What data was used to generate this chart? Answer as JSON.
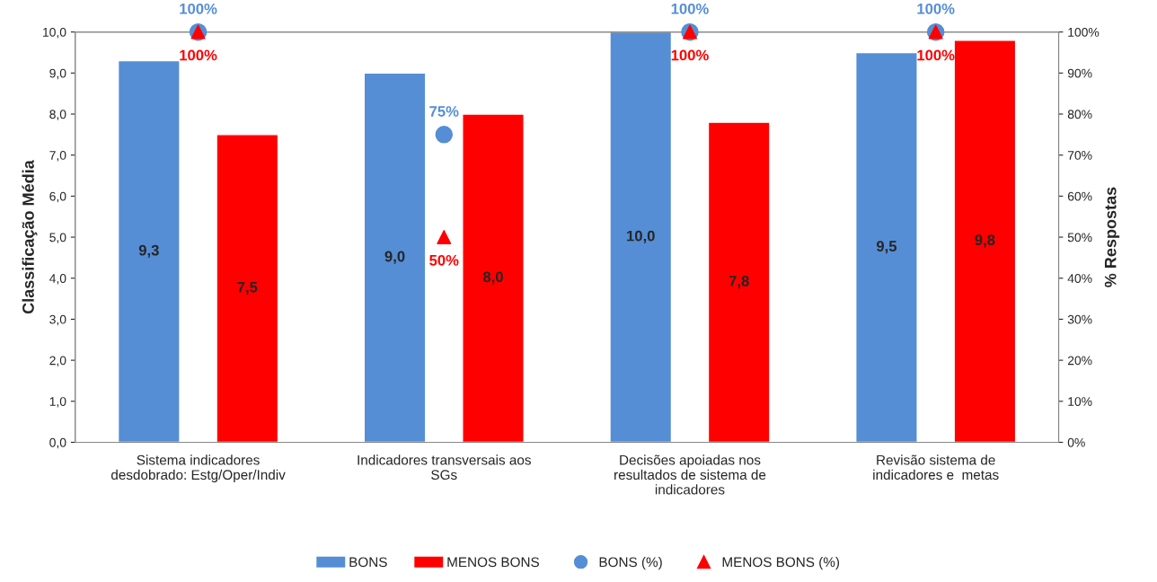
{
  "chart_data": {
    "type": "bar",
    "categories": [
      "Sistema indicadores\ndesdobrado: Estg/Oper/Indiv",
      "Indicadores transversais aos\nSGs",
      "Decisões apoiadas nos\nresultados de sistema de\nindicadores",
      "Revisão sistema de\nindicadores e  metas"
    ],
    "ylabel": "Classificação Média",
    "y2label": "% Respostas",
    "ylim": [
      0,
      10
    ],
    "yticks": [
      {
        "value": 0,
        "label": "0,0"
      },
      {
        "value": 1,
        "label": "1,0"
      },
      {
        "value": 2,
        "label": "2,0"
      },
      {
        "value": 3,
        "label": "3,0"
      },
      {
        "value": 4,
        "label": "4,0"
      },
      {
        "value": 5,
        "label": "5,0"
      },
      {
        "value": 6,
        "label": "6,0"
      },
      {
        "value": 7,
        "label": "7,0"
      },
      {
        "value": 8,
        "label": "8,0"
      },
      {
        "value": 9,
        "label": "9,0"
      },
      {
        "value": 10,
        "label": "10,0"
      }
    ],
    "y2lim": [
      0,
      100
    ],
    "y2ticks": [
      {
        "value": 0,
        "label": "0%"
      },
      {
        "value": 10,
        "label": "10%"
      },
      {
        "value": 20,
        "label": "20%"
      },
      {
        "value": 30,
        "label": "30%"
      },
      {
        "value": 40,
        "label": "40%"
      },
      {
        "value": 50,
        "label": "50%"
      },
      {
        "value": 60,
        "label": "60%"
      },
      {
        "value": 70,
        "label": "70%"
      },
      {
        "value": 80,
        "label": "80%"
      },
      {
        "value": 90,
        "label": "90%"
      },
      {
        "value": 100,
        "label": "100%"
      }
    ],
    "series": [
      {
        "name": "BONS",
        "color": "#558ed5",
        "values": [
          9.3,
          9.0,
          10.0,
          9.5
        ],
        "value_labels": [
          "9,3",
          "9,0",
          "10,0",
          "9,5"
        ]
      },
      {
        "name": "MENOS BONS",
        "color": "#ff0000",
        "values": [
          7.5,
          8.0,
          7.8,
          9.8
        ],
        "value_labels": [
          "7,5",
          "8,0",
          "7,8",
          "9,8"
        ]
      },
      {
        "name": "BONS (%)",
        "type": "scatter",
        "axis": "y2",
        "marker": "circle",
        "color": "#558ed5",
        "values": [
          100,
          75,
          100,
          100
        ],
        "value_labels": [
          "100%",
          "75%",
          "100%",
          "100%"
        ]
      },
      {
        "name": "MENOS BONS (%)",
        "type": "scatter",
        "axis": "y2",
        "marker": "triangle",
        "color": "#ff0000",
        "values": [
          100,
          50,
          100,
          100
        ],
        "value_labels": [
          "100%",
          "50%",
          "100%",
          "100%"
        ]
      }
    ],
    "legend": "bottom",
    "grid": false
  }
}
